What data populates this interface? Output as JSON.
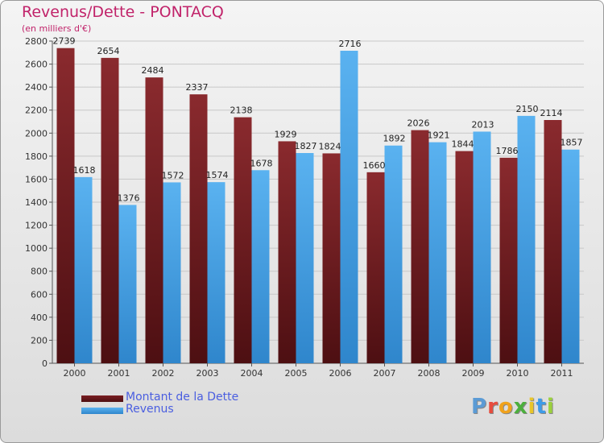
{
  "title": "Revenus/Dette - PONTACQ",
  "unit_label": "(en milliers d'€)",
  "logo": {
    "letters": [
      "P",
      "r",
      "o",
      "x",
      "i",
      "t",
      "i"
    ],
    "colors": [
      "#5b9bd5",
      "#e84c3d",
      "#f0a21c",
      "#4caf3d",
      "#e8c52a",
      "#3d9be8",
      "#9bd13d"
    ]
  },
  "colors": {
    "debt": "#7b1e22",
    "revenue": "#4aa3e6",
    "title": "#c1236a",
    "legend_text": "#4a5ee0"
  },
  "chart_data": {
    "type": "bar",
    "title": "Revenus/Dette - PONTACQ",
    "ylabel": "(en milliers d'€)",
    "xlabel": "",
    "categories": [
      "2000",
      "2001",
      "2002",
      "2003",
      "2004",
      "2005",
      "2006",
      "2007",
      "2008",
      "2009",
      "2010",
      "2011"
    ],
    "series": [
      {
        "name": "Montant de la Dette",
        "values": [
          2739,
          2654,
          2484,
          2337,
          2138,
          1929,
          1824,
          1660,
          2026,
          1844,
          1786,
          2114
        ]
      },
      {
        "name": "Revenus",
        "values": [
          1618,
          1376,
          1572,
          1574,
          1678,
          1827,
          2716,
          1892,
          1921,
          2013,
          2150,
          1857
        ]
      }
    ],
    "ylim": [
      0,
      2800
    ],
    "yticks": [
      0,
      200,
      400,
      600,
      800,
      1000,
      1200,
      1400,
      1600,
      1800,
      2000,
      2200,
      2400,
      2600,
      2800
    ],
    "grid": true,
    "legend": "bottom-left"
  }
}
